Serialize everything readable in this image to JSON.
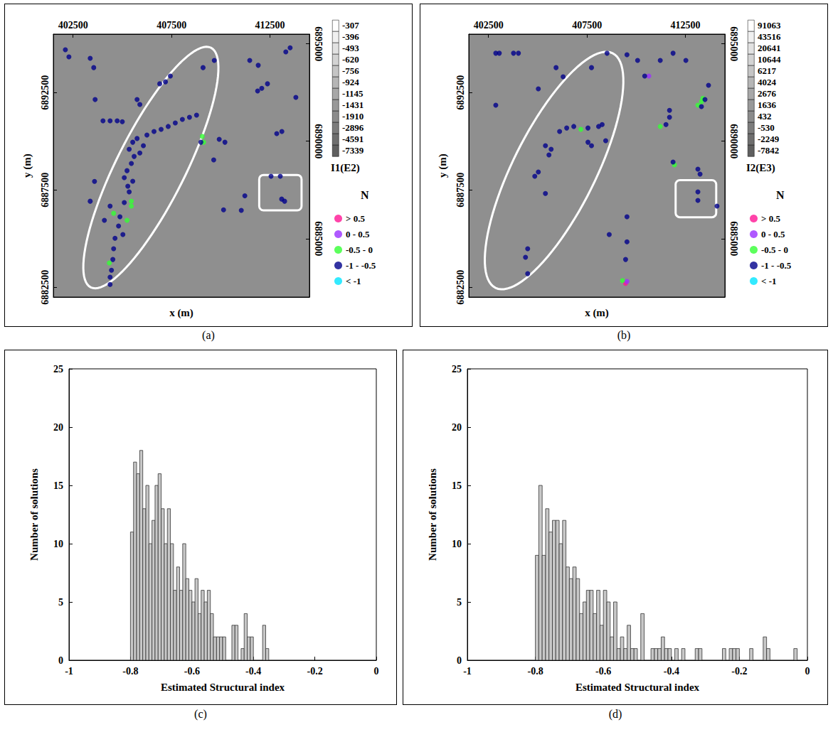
{
  "chart_data": [
    {
      "type": "scatter",
      "label": "(a)",
      "xlabel": "x (m)",
      "ylabel": "y (m)",
      "xlim": [
        401500,
        414500
      ],
      "xticks": [
        402500,
        407500,
        412500
      ],
      "ylim": [
        6882000,
        6895500
      ],
      "yticks": [
        6882500,
        6887500,
        6892500
      ],
      "y2lim": [
        6882000,
        6895500
      ],
      "y2ticks": [
        6885000,
        6890000,
        6895000
      ],
      "colorbar": {
        "label": "I1(E2)",
        "ticks": [
          -307,
          -396,
          -493,
          -620,
          -756,
          -924,
          -1145,
          -1431,
          -1910,
          -2896,
          -4591,
          -7339
        ]
      },
      "legend": "right",
      "legend_title": "N",
      "series": [
        {
          "name": "> 0.5",
          "color": "#ff1493",
          "values": []
        },
        {
          "name": "0 - 0.5",
          "color": "#9b30ff",
          "values": []
        },
        {
          "name": "-0.5 - 0",
          "color": "#33ff33",
          "values": [
            [
              404340,
              6883750
            ],
            [
              404560,
              6886300
            ],
            [
              405460,
              6886670
            ],
            [
              405460,
              6886920
            ],
            [
              405240,
              6885940
            ],
            [
              409060,
              6890250
            ],
            [
              409130,
              6889950
            ]
          ]
        },
        {
          "name": "-1 - -0.5",
          "color": "#00008b",
          "values": [
            [
              402110,
              6894700
            ],
            [
              402290,
              6894330
            ],
            [
              403370,
              6894260
            ],
            [
              403550,
              6893780
            ],
            [
              403620,
              6892140
            ],
            [
              404020,
              6891050
            ],
            [
              404380,
              6891050
            ],
            [
              404740,
              6891050
            ],
            [
              405000,
              6891000
            ],
            [
              405890,
              6891890
            ],
            [
              406900,
              6892950
            ],
            [
              407190,
              6893050
            ],
            [
              407440,
              6893350
            ],
            [
              409100,
              6893780
            ],
            [
              409670,
              6894150
            ],
            [
              411470,
              6894150
            ],
            [
              411900,
              6893900
            ],
            [
              411870,
              6892580
            ],
            [
              412080,
              6892720
            ],
            [
              412370,
              6892950
            ],
            [
              413300,
              6894590
            ],
            [
              413520,
              6894800
            ],
            [
              413810,
              6892250
            ],
            [
              412840,
              6890390
            ],
            [
              413100,
              6890500
            ],
            [
              409920,
              6890100
            ],
            [
              410210,
              6889950
            ],
            [
              409640,
              6889040
            ],
            [
              410140,
              6886480
            ],
            [
              411040,
              6886450
            ],
            [
              411220,
              6887200
            ],
            [
              412550,
              6888200
            ],
            [
              413020,
              6888200
            ],
            [
              413090,
              6887030
            ],
            [
              413240,
              6886920
            ],
            [
              403370,
              6886920
            ],
            [
              403590,
              6887940
            ],
            [
              404380,
              6882650
            ],
            [
              404380,
              6883020
            ],
            [
              404450,
              6883380
            ],
            [
              404520,
              6883930
            ],
            [
              404560,
              6884480
            ],
            [
              404630,
              6885020
            ],
            [
              404810,
              6885650
            ],
            [
              404880,
              6886120
            ],
            [
              405100,
              6886850
            ],
            [
              405350,
              6887400
            ],
            [
              405530,
              6887950
            ],
            [
              405100,
              6888130
            ],
            [
              405280,
              6887690
            ],
            [
              405240,
              6888490
            ],
            [
              405460,
              6888860
            ],
            [
              405600,
              6889220
            ],
            [
              405350,
              6889590
            ],
            [
              405530,
              6889950
            ],
            [
              405890,
              6889400
            ],
            [
              406070,
              6889770
            ],
            [
              405750,
              6890140
            ],
            [
              406250,
              6890320
            ],
            [
              406610,
              6890500
            ],
            [
              406970,
              6890610
            ],
            [
              407330,
              6890760
            ],
            [
              407690,
              6890940
            ],
            [
              408050,
              6891120
            ],
            [
              408410,
              6891230
            ],
            [
              408770,
              6891340
            ],
            [
              408990,
              6889950
            ],
            [
              405750,
              6892140
            ],
            [
              404380,
              6886670
            ],
            [
              404090,
              6885940
            ],
            [
              405030,
              6885210
            ]
          ]
        },
        {
          "name": "< -1",
          "color": "#00e5ff",
          "values": []
        }
      ],
      "shapes": [
        {
          "shape": "ellipse",
          "major_axis": [
            [
              403400,
              6882500
            ],
            [
              409500,
              6894800
            ]
          ],
          "minor_radius": 1750,
          "color": "#ffffff"
        },
        {
          "shape": "rectangle",
          "corners": [
            [
              411950,
              6886450
            ],
            [
              414100,
              6888270
            ]
          ],
          "color": "#ffffff"
        }
      ]
    },
    {
      "type": "scatter",
      "label": "(b)",
      "xlabel": "x (m)",
      "ylabel": "y (m)",
      "xlim": [
        401500,
        414500
      ],
      "xticks": [
        402500,
        407500,
        412500
      ],
      "ylim": [
        6882000,
        6895500
      ],
      "yticks": [
        6882500,
        6887500,
        6892500
      ],
      "y2lim": [
        6882000,
        6895500
      ],
      "y2ticks": [
        6885000,
        6890000,
        6895000
      ],
      "colorbar": {
        "label": "I2(E3)",
        "ticks": [
          91063,
          43516,
          20641,
          10644,
          6217,
          4024,
          2676,
          1636,
          432,
          -530,
          -2249,
          -7842
        ]
      },
      "legend": "right",
      "legend_title": "N",
      "series": [
        {
          "name": "> 0.5",
          "color": "#ff1493",
          "values": [
            [
              409460,
              6882700
            ]
          ]
        },
        {
          "name": "0 - 0.5",
          "color": "#9b30ff",
          "values": [
            [
              410640,
              6893350
            ],
            [
              409530,
              6882800
            ]
          ]
        },
        {
          "name": "-0.5 - 0",
          "color": "#33ff33",
          "values": [
            [
              411220,
              6890760
            ],
            [
              413130,
              6891850
            ],
            [
              413310,
              6892030
            ],
            [
              413380,
              6892210
            ],
            [
              411940,
              6888790
            ],
            [
              407190,
              6890610
            ],
            [
              409300,
              6882850
            ]
          ]
        },
        {
          "name": "-1 - -0.5",
          "color": "#00008b",
          "values": [
            [
              402870,
              6894520
            ],
            [
              403050,
              6894520
            ],
            [
              403770,
              6894520
            ],
            [
              404020,
              6894520
            ],
            [
              402870,
              6891850
            ],
            [
              405030,
              6892690
            ],
            [
              405930,
              6893780
            ],
            [
              406290,
              6893310
            ],
            [
              407730,
              6893780
            ],
            [
              408520,
              6894520
            ],
            [
              409530,
              6894440
            ],
            [
              410070,
              6894150
            ],
            [
              410430,
              6893350
            ],
            [
              411220,
              6894150
            ],
            [
              411870,
              6894520
            ],
            [
              412520,
              6894150
            ],
            [
              411690,
              6891590
            ],
            [
              411690,
              6891230
            ],
            [
              411510,
              6890860
            ],
            [
              413490,
              6892140
            ],
            [
              413310,
              6891780
            ],
            [
              413670,
              6892870
            ],
            [
              411870,
              6888930
            ],
            [
              413130,
              6888570
            ],
            [
              413240,
              6888310
            ],
            [
              413130,
              6887400
            ],
            [
              413130,
              6886960
            ],
            [
              414100,
              6886670
            ],
            [
              406110,
              6890500
            ],
            [
              406470,
              6890680
            ],
            [
              406830,
              6890760
            ],
            [
              407550,
              6890680
            ],
            [
              408090,
              6890760
            ],
            [
              408270,
              6890860
            ],
            [
              405390,
              6889770
            ],
            [
              405680,
              6889590
            ],
            [
              405570,
              6889300
            ],
            [
              405030,
              6888420
            ],
            [
              404850,
              6888200
            ],
            [
              405390,
              6887320
            ],
            [
              404490,
              6884480
            ],
            [
              404380,
              6884040
            ],
            [
              404490,
              6883200
            ],
            [
              407550,
              6889950
            ],
            [
              407730,
              6889770
            ],
            [
              408450,
              6890030
            ],
            [
              408630,
              6885210
            ],
            [
              409530,
              6884840
            ],
            [
              409460,
              6883930
            ],
            [
              409530,
              6886120
            ]
          ]
        },
        {
          "name": "< -1",
          "color": "#00e5ff",
          "values": []
        }
      ],
      "shapes": [
        {
          "shape": "ellipse",
          "major_axis": [
            [
              402860,
              6882470
            ],
            [
              408800,
              6894520
            ]
          ],
          "minor_radius": 2100,
          "color": "#ffffff"
        },
        {
          "shape": "rectangle",
          "corners": [
            [
              412000,
              6886100
            ],
            [
              414060,
              6888000
            ]
          ],
          "color": "#ffffff"
        }
      ]
    },
    {
      "type": "histogram",
      "label": "(c)",
      "xlabel": "Estimated Structural index",
      "ylabel": "Number of solutions",
      "bins": [
        -0.8,
        -0.79,
        -0.78,
        -0.77,
        -0.76,
        -0.75,
        -0.74,
        -0.73,
        -0.72,
        -0.71,
        -0.7,
        -0.69,
        -0.68,
        -0.67,
        -0.66,
        -0.65,
        -0.64,
        -0.63,
        -0.62,
        -0.61,
        -0.6,
        -0.59,
        -0.58,
        -0.57,
        -0.56,
        -0.55,
        -0.54,
        -0.53,
        -0.52,
        -0.51,
        -0.5,
        -0.49,
        -0.48,
        -0.47,
        -0.46,
        -0.45,
        -0.44,
        -0.43,
        -0.42,
        -0.41,
        -0.4,
        -0.39,
        -0.38,
        -0.37,
        -0.36,
        -0.35
      ],
      "counts": [
        11,
        17,
        16,
        18,
        13,
        15,
        10,
        12,
        15,
        16,
        13,
        10,
        13,
        10,
        6,
        8,
        6,
        10,
        7,
        6,
        5,
        7,
        4,
        6,
        5,
        6,
        4,
        2,
        2,
        2,
        2,
        0,
        0,
        3,
        3,
        0,
        1,
        4,
        2,
        2,
        0,
        0,
        0,
        3,
        1
      ],
      "color": "#c8c8c8",
      "xlim": [
        -1,
        0
      ],
      "xticks": [
        -1,
        -0.8,
        -0.6,
        -0.4,
        -0.2,
        0
      ],
      "ylim": [
        0,
        25
      ],
      "yticks": [
        0,
        5,
        10,
        15,
        20,
        25
      ]
    },
    {
      "type": "histogram",
      "label": "(d)",
      "xlabel": "Estimated Structural index",
      "ylabel": "Number of solutions",
      "bins": [
        -0.8,
        -0.79,
        -0.78,
        -0.77,
        -0.76,
        -0.75,
        -0.74,
        -0.73,
        -0.72,
        -0.71,
        -0.7,
        -0.69,
        -0.68,
        -0.67,
        -0.66,
        -0.65,
        -0.64,
        -0.63,
        -0.62,
        -0.61,
        -0.6,
        -0.59,
        -0.58,
        -0.57,
        -0.56,
        -0.55,
        -0.54,
        -0.53,
        -0.52,
        -0.51,
        -0.5,
        -0.49,
        -0.48,
        -0.47,
        -0.46,
        -0.45,
        -0.44,
        -0.43,
        -0.42,
        -0.41,
        -0.4,
        -0.39,
        -0.38,
        -0.37,
        -0.36,
        -0.35,
        -0.34,
        -0.33,
        -0.32,
        -0.31,
        -0.3,
        -0.29,
        -0.28,
        -0.27,
        -0.26,
        -0.25,
        -0.24,
        -0.23,
        -0.22,
        -0.21,
        -0.2,
        -0.19,
        -0.18,
        -0.17,
        -0.16,
        -0.15,
        -0.14,
        -0.13,
        -0.12,
        -0.11,
        -0.1,
        -0.09,
        -0.08,
        -0.07,
        -0.06,
        -0.05,
        -0.04,
        -0.03
      ],
      "counts": [
        9,
        15,
        9,
        13,
        11,
        12,
        12,
        10,
        12,
        8,
        7,
        8,
        7,
        4,
        5,
        6,
        6,
        4,
        6,
        3,
        6,
        5,
        2,
        5,
        1,
        2,
        1,
        3,
        1,
        1,
        0,
        4,
        0,
        0,
        1,
        1,
        1,
        2,
        1,
        1,
        0,
        1,
        0,
        1,
        0,
        0,
        0,
        1,
        1,
        0,
        0,
        0,
        0,
        0,
        0,
        1,
        0,
        1,
        1,
        1,
        0,
        0,
        0,
        1,
        0,
        0,
        0,
        2,
        1,
        0,
        0,
        0,
        0,
        0,
        0,
        0,
        1
      ],
      "color": "#c8c8c8",
      "xlim": [
        -1,
        0
      ],
      "xticks": [
        -1,
        -0.8,
        -0.6,
        -0.4,
        -0.2,
        0
      ],
      "ylim": [
        0,
        25
      ],
      "yticks": [
        0,
        5,
        10,
        15,
        20,
        25
      ]
    }
  ]
}
